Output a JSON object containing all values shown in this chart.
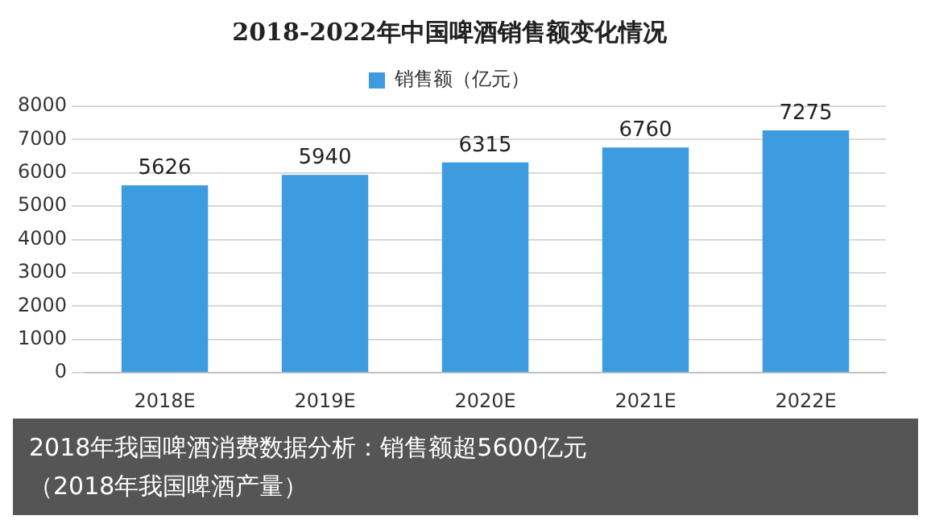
{
  "chart_data": {
    "type": "bar",
    "title": "2018-2022年中国啤酒销售额变化情况",
    "categories": [
      "2018E",
      "2019E",
      "2020E",
      "2021E",
      "2022E"
    ],
    "series": [
      {
        "name": "销售额（亿元）",
        "color": "#3d9be0",
        "values": [
          5626,
          5940,
          6315,
          6760,
          7275
        ]
      }
    ],
    "ylim": [
      0,
      8000
    ],
    "yticks": [
      0,
      1000,
      2000,
      3000,
      4000,
      5000,
      6000,
      7000,
      8000
    ],
    "grid": "y",
    "legend": "top",
    "data_labels": true,
    "annotations": [
      "2018年我国啤酒消费数据分析：销售额超5600亿元",
      "（2018年我国啤酒产量）"
    ]
  }
}
